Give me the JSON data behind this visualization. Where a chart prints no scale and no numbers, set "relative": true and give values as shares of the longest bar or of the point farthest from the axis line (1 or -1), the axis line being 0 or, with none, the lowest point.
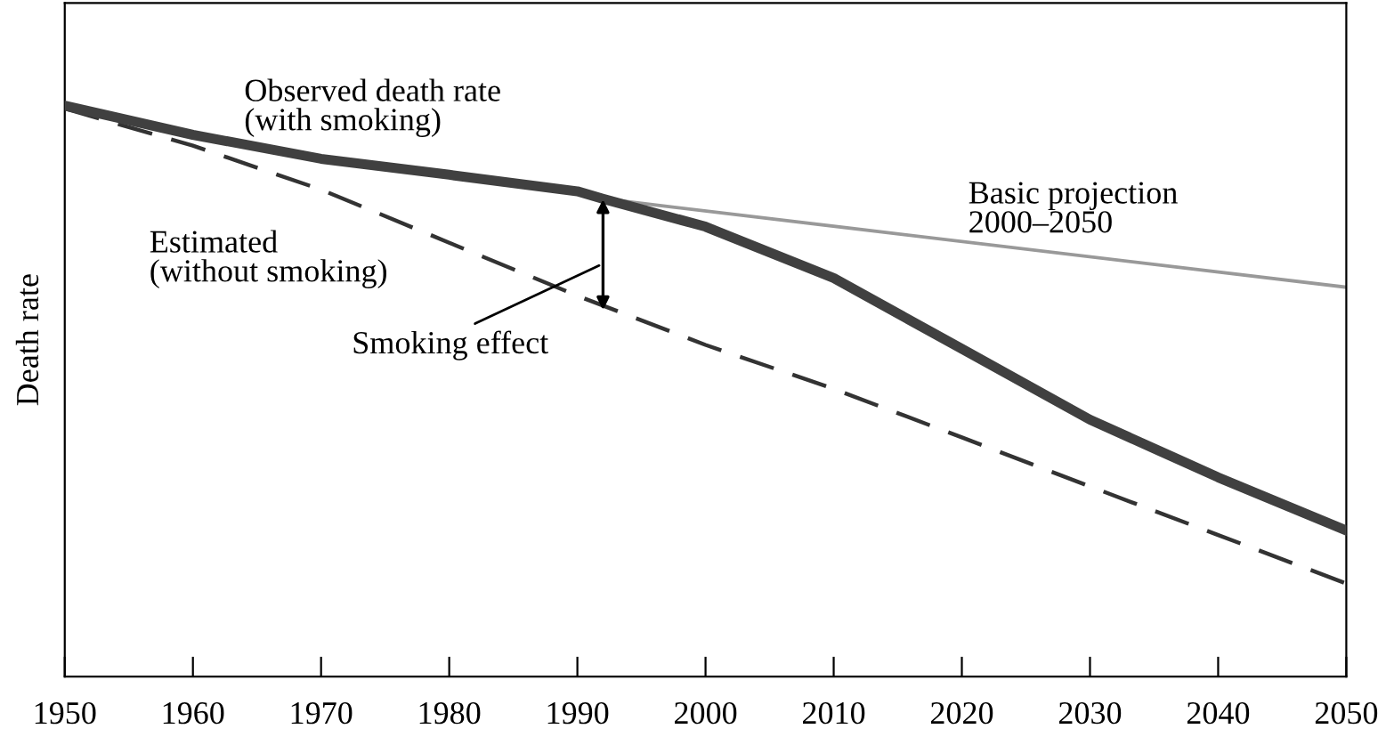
{
  "chart_data": {
    "type": "line",
    "relative": true,
    "ylabel": "Death rate",
    "xlim": [
      1950,
      2050
    ],
    "xticks": [
      1950,
      1960,
      1970,
      1980,
      1990,
      2000,
      2010,
      2020,
      2030,
      2040,
      2050
    ],
    "grid": false,
    "legend": false,
    "series": [
      {
        "name": "Observed death rate\n(with smoking)",
        "color": "#404040",
        "line_style": "solid",
        "x": [
          1950,
          1960,
          1970,
          1980,
          1990,
          1992,
          2000,
          2010,
          2020,
          2030,
          2040,
          2050
        ],
        "values": [
          1,
          0.949,
          0.907,
          0.879,
          0.85,
          0.837,
          0.788,
          0.698,
          0.574,
          0.45,
          0.349,
          0.256
        ]
      },
      {
        "name": "Estimated\n(without smoking)",
        "color": "#333333",
        "line_style": "dashed",
        "x": [
          1950,
          1960,
          1970,
          1980,
          1990,
          2000,
          2010,
          2020,
          2030,
          2040,
          2050
        ],
        "values": [
          0.995,
          0.93,
          0.853,
          0.76,
          0.667,
          0.581,
          0.504,
          0.419,
          0.333,
          0.248,
          0.163
        ]
      },
      {
        "name": "Basic projection\n2000–2050",
        "color": "#999999",
        "line_style": "solid",
        "x": [
          1992,
          2050
        ],
        "values": [
          0.837,
          0.682
        ]
      }
    ],
    "annotations": [
      "Smoking effect"
    ]
  }
}
